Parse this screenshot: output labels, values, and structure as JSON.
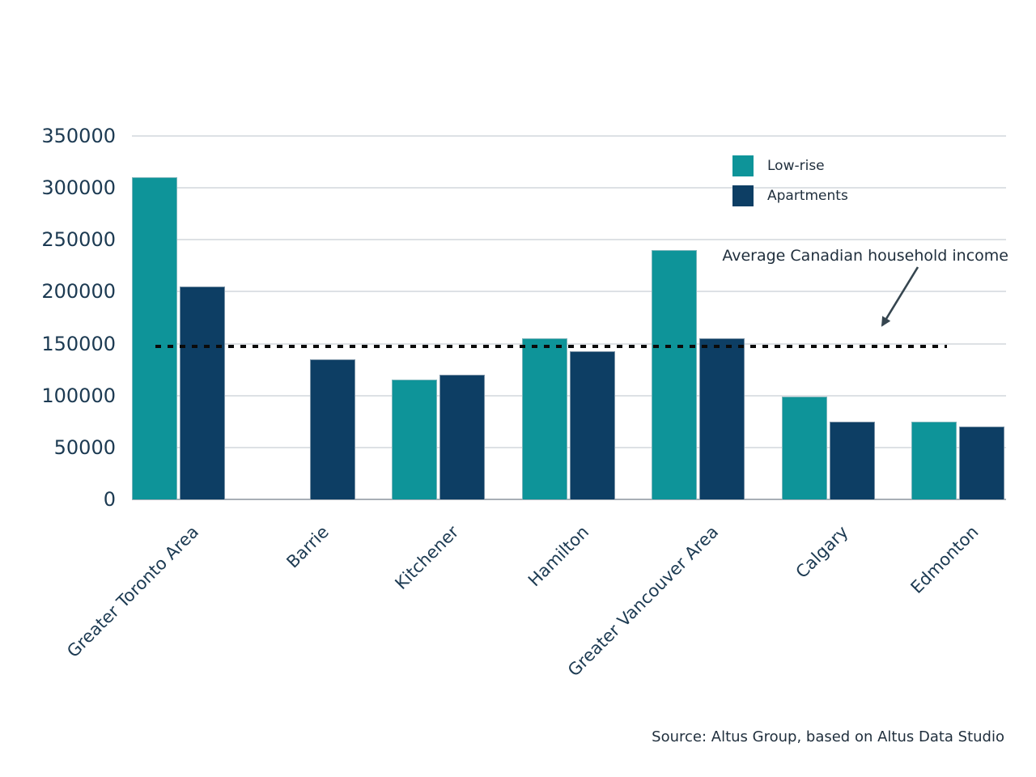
{
  "chart_data": {
    "type": "bar",
    "title": "",
    "categories": [
      "Greater Toronto Area",
      "Barrie",
      "Kitchener",
      "Hamilton",
      "Greater Vancouver Area",
      "Calgary",
      "Edmonton"
    ],
    "series": [
      {
        "name": "Low-rise",
        "color": "#0E9499",
        "values": [
          310000,
          null,
          115000,
          155000,
          240000,
          99000,
          75000
        ]
      },
      {
        "name": "Apartments",
        "color": "#0D3E64",
        "values": [
          205000,
          135000,
          120000,
          143000,
          155000,
          75000,
          70000
        ]
      }
    ],
    "y_ticks": [
      0,
      50000,
      100000,
      150000,
      200000,
      250000,
      300000,
      350000
    ],
    "ylim": [
      0,
      350000
    ],
    "xlabel": "",
    "ylabel": "",
    "grid": "horizontal",
    "legend_position": "top-right",
    "reference_line": {
      "value": 147000,
      "label": "Average Canadian household income",
      "style": "dotted",
      "color": "#0B0B0B"
    }
  },
  "annotation": {
    "arrow_icon": "arrow-pointing-down-left-to-dotted-line"
  },
  "source": {
    "text": "Source: Altus Group, based on Altus Data Studio"
  },
  "colors": {
    "lowrise": "#0E9499",
    "apartments": "#0D3E64",
    "tick_text": "#1C3A52",
    "body_text": "#1F2E3C",
    "gridline": "#DDE1E5",
    "axis_line": "#A8AFB6",
    "reference_line": "#0B0B0B",
    "arrow": "#35454F",
    "background": "#FFFFFF"
  }
}
